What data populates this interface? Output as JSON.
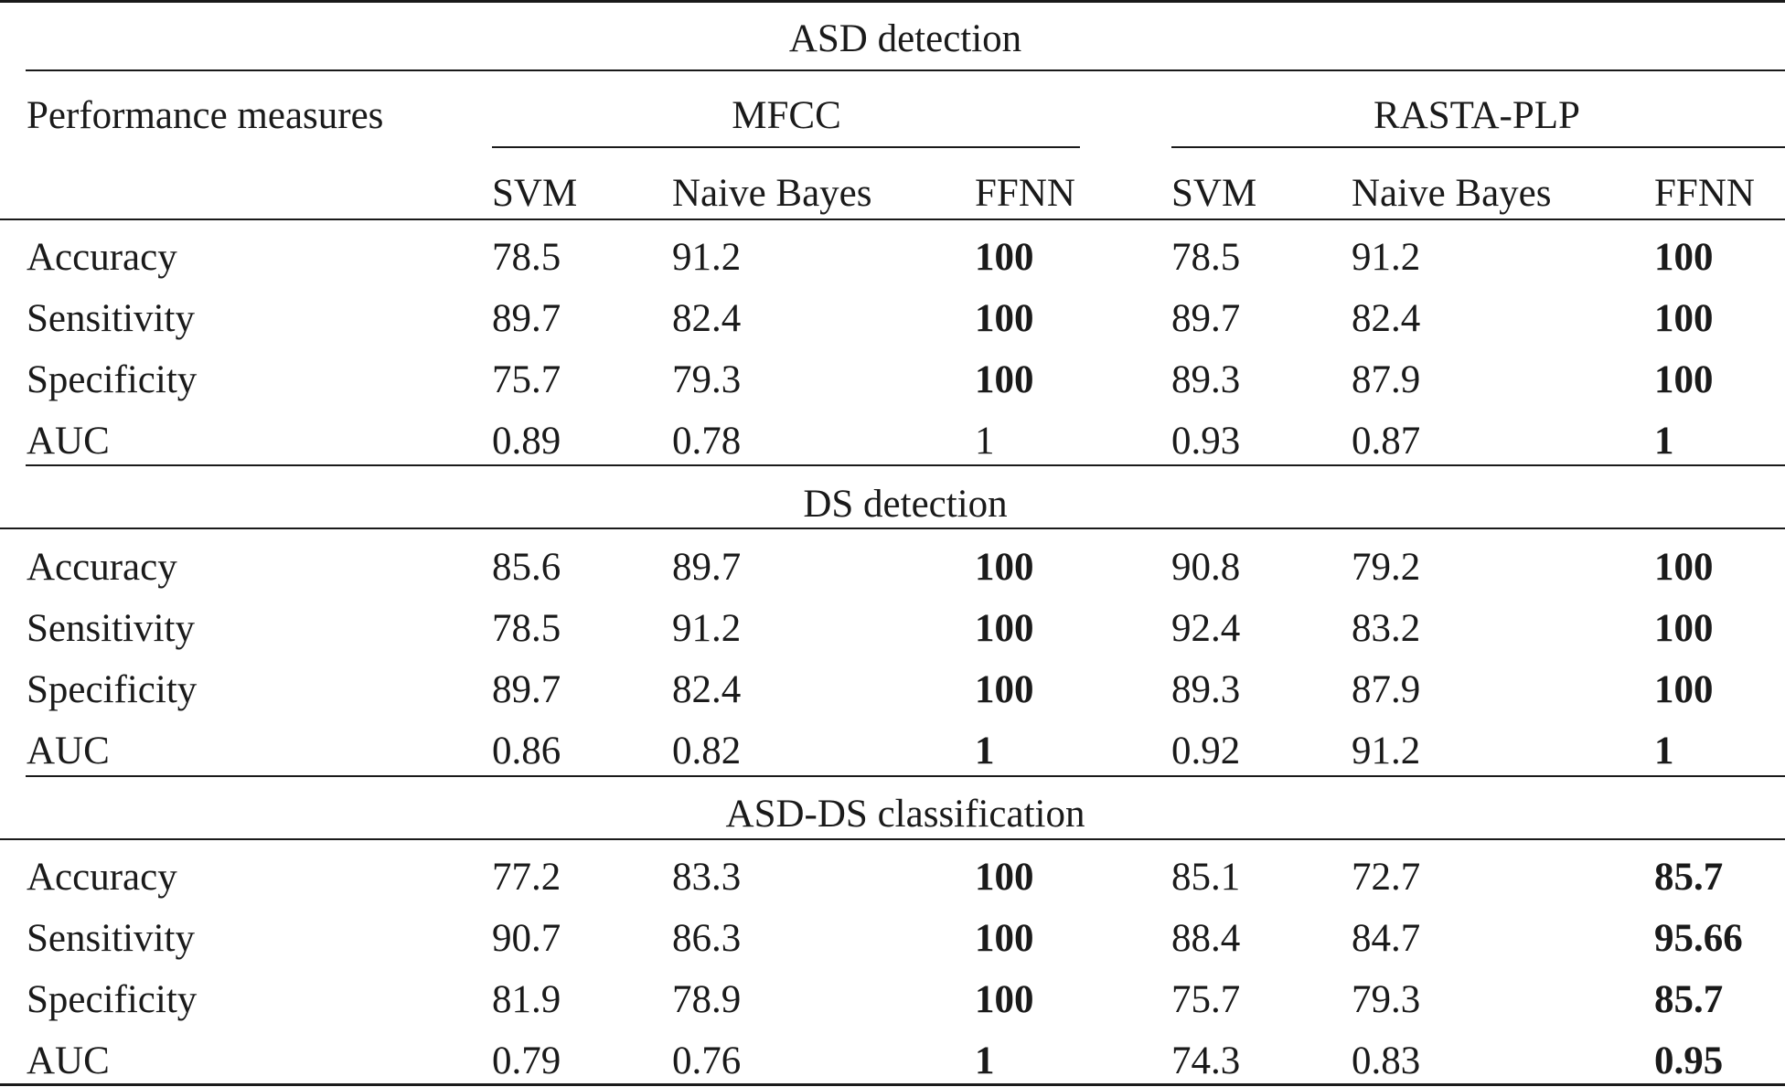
{
  "table": {
    "row_header_label": "Performance measures",
    "group_labels": [
      "MFCC",
      "RASTA-PLP"
    ],
    "column_labels": [
      "SVM",
      "Naive Bayes",
      "FFNN",
      "SVM",
      "Naive Bayes",
      "FFNN"
    ],
    "sections": [
      {
        "title": "ASD detection",
        "rows": [
          {
            "measure": "Accuracy",
            "values": [
              "78.5",
              "91.2",
              "100",
              "78.5",
              "91.2",
              "100"
            ],
            "bold": [
              false,
              false,
              true,
              false,
              false,
              true
            ]
          },
          {
            "measure": "Sensitivity",
            "values": [
              "89.7",
              "82.4",
              "100",
              "89.7",
              "82.4",
              "100"
            ],
            "bold": [
              false,
              false,
              true,
              false,
              false,
              true
            ]
          },
          {
            "measure": "Specificity",
            "values": [
              "75.7",
              "79.3",
              "100",
              "89.3",
              "87.9",
              "100"
            ],
            "bold": [
              false,
              false,
              true,
              false,
              false,
              true
            ]
          },
          {
            "measure": "AUC",
            "values": [
              "0.89",
              "0.78",
              "1",
              "0.93",
              "0.87",
              "1"
            ],
            "bold": [
              false,
              false,
              false,
              false,
              false,
              true
            ]
          }
        ]
      },
      {
        "title": "DS detection",
        "rows": [
          {
            "measure": "Accuracy",
            "values": [
              "85.6",
              "89.7",
              "100",
              "90.8",
              "79.2",
              "100"
            ],
            "bold": [
              false,
              false,
              true,
              false,
              false,
              true
            ]
          },
          {
            "measure": "Sensitivity",
            "values": [
              "78.5",
              "91.2",
              "100",
              "92.4",
              "83.2",
              "100"
            ],
            "bold": [
              false,
              false,
              true,
              false,
              false,
              true
            ]
          },
          {
            "measure": "Specificity",
            "values": [
              "89.7",
              "82.4",
              "100",
              "89.3",
              "87.9",
              "100"
            ],
            "bold": [
              false,
              false,
              true,
              false,
              false,
              true
            ]
          },
          {
            "measure": "AUC",
            "values": [
              "0.86",
              "0.82",
              "1",
              "0.92",
              "91.2",
              "1"
            ],
            "bold": [
              false,
              false,
              true,
              false,
              false,
              true
            ]
          }
        ]
      },
      {
        "title": "ASD-DS classification",
        "rows": [
          {
            "measure": "Accuracy",
            "values": [
              "77.2",
              "83.3",
              "100",
              "85.1",
              "72.7",
              "85.7"
            ],
            "bold": [
              false,
              false,
              true,
              false,
              false,
              true
            ]
          },
          {
            "measure": "Sensitivity",
            "values": [
              "90.7",
              "86.3",
              "100",
              "88.4",
              "84.7",
              "95.66"
            ],
            "bold": [
              false,
              false,
              true,
              false,
              false,
              true
            ]
          },
          {
            "measure": "Specificity",
            "values": [
              "81.9",
              "78.9",
              "100",
              "75.7",
              "79.3",
              "85.7"
            ],
            "bold": [
              false,
              false,
              true,
              false,
              false,
              true
            ]
          },
          {
            "measure": "AUC",
            "values": [
              "0.79",
              "0.76",
              "1",
              "74.3",
              "0.83",
              "0.95"
            ],
            "bold": [
              false,
              false,
              true,
              false,
              false,
              true
            ]
          }
        ]
      }
    ]
  }
}
